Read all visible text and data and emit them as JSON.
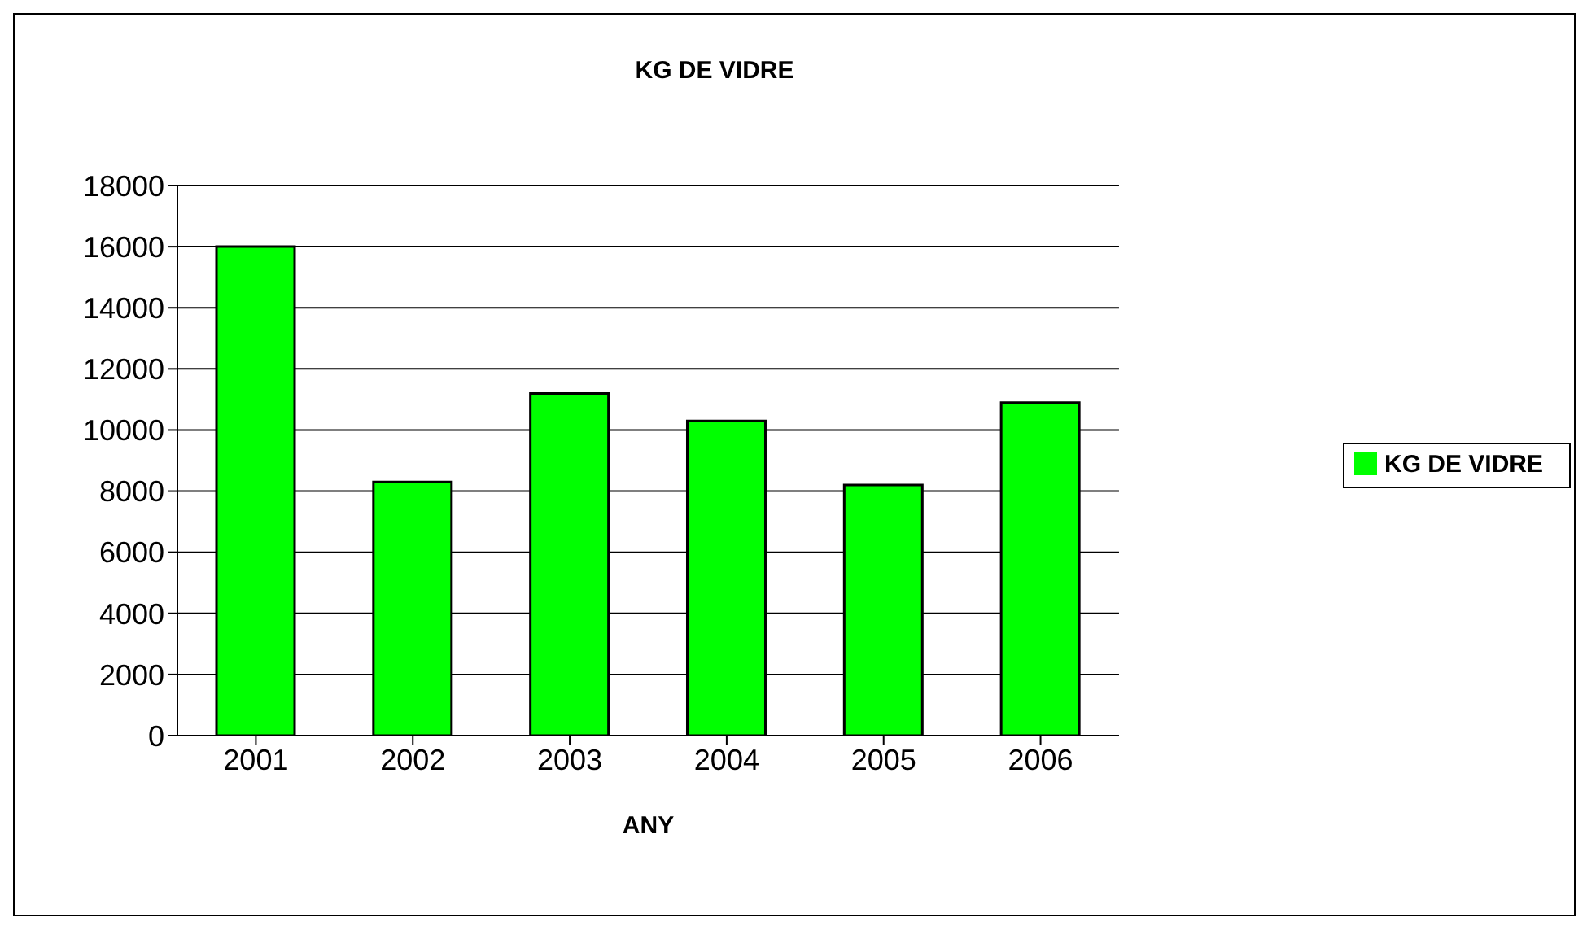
{
  "chart_data": {
    "type": "bar",
    "title": "KG DE VIDRE",
    "xlabel": "ANY",
    "categories": [
      "2001",
      "2002",
      "2003",
      "2004",
      "2005",
      "2006"
    ],
    "series": [
      {
        "name": "KG DE VIDRE",
        "color": "#00ff00",
        "values": [
          16000,
          8300,
          11200,
          10300,
          8200,
          10900
        ]
      }
    ],
    "ylim": [
      0,
      18000
    ],
    "yticks": [
      0,
      2000,
      4000,
      6000,
      8000,
      10000,
      12000,
      14000,
      16000,
      18000
    ],
    "grid": "y",
    "legend": "right"
  }
}
